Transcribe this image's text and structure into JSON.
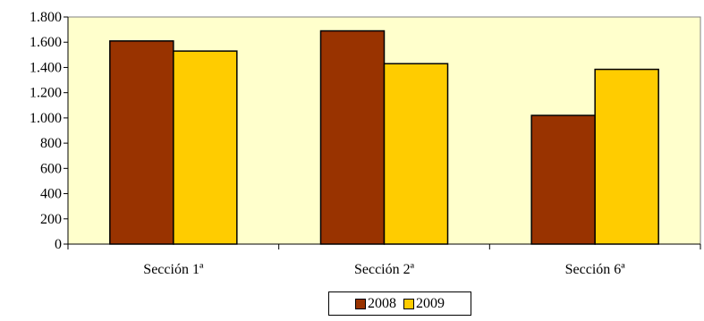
{
  "chart_data": {
    "type": "bar",
    "categories": [
      "Sección 1ª",
      "Sección 2ª",
      "Sección 6ª"
    ],
    "series": [
      {
        "name": "2008",
        "values": [
          1610,
          1690,
          1020
        ],
        "color": "#993300"
      },
      {
        "name": "2009",
        "values": [
          1530,
          1430,
          1385
        ],
        "color": "#FFCC00"
      }
    ],
    "ylim": [
      0,
      1800
    ],
    "yticks": [
      0,
      200,
      400,
      600,
      800,
      1000,
      1200,
      1400,
      1600,
      1800
    ],
    "ytick_labels": [
      "0",
      "200",
      "400",
      "600",
      "800",
      "1.000",
      "1.200",
      "1.400",
      "1.600",
      "1.800"
    ],
    "plot_background": "#FFFFCC",
    "grid": false,
    "legend_position": "bottom"
  }
}
